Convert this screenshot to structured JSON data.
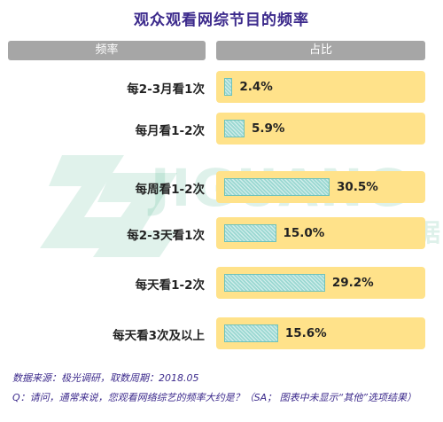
{
  "title": "观众观看网综节目的频率",
  "headers": {
    "left": "频率",
    "right": "占比"
  },
  "watermark": {
    "brand": "JIGUANG",
    "cn": "极 光 大 数 据"
  },
  "chart_data": {
    "type": "bar",
    "categories": [
      "每2-3月看1次",
      "每月看1-2次",
      "每周看1-2次",
      "每2-3天看1次",
      "每天看1-2次",
      "每天看3次及以上"
    ],
    "values": [
      2.4,
      5.9,
      30.5,
      15.0,
      29.2,
      15.6
    ],
    "value_labels": [
      "2.4%",
      "5.9%",
      "30.5%",
      "15.0%",
      "29.2%",
      "15.6%"
    ],
    "unit": "%",
    "colors": {
      "bar": "#9ad8d2",
      "bar_border": "#6fc2bb",
      "row_bg": "#ffe28a",
      "header": "#a6a6a6",
      "title": "#3c2a8c"
    }
  },
  "notes": {
    "source": "数据来源：极光调研，取数周期：2018.05",
    "question": "Q：请问，通常来说，您观看网络综艺的频率大约是？（SA； 图表中未显示“其他”选项结果）"
  }
}
